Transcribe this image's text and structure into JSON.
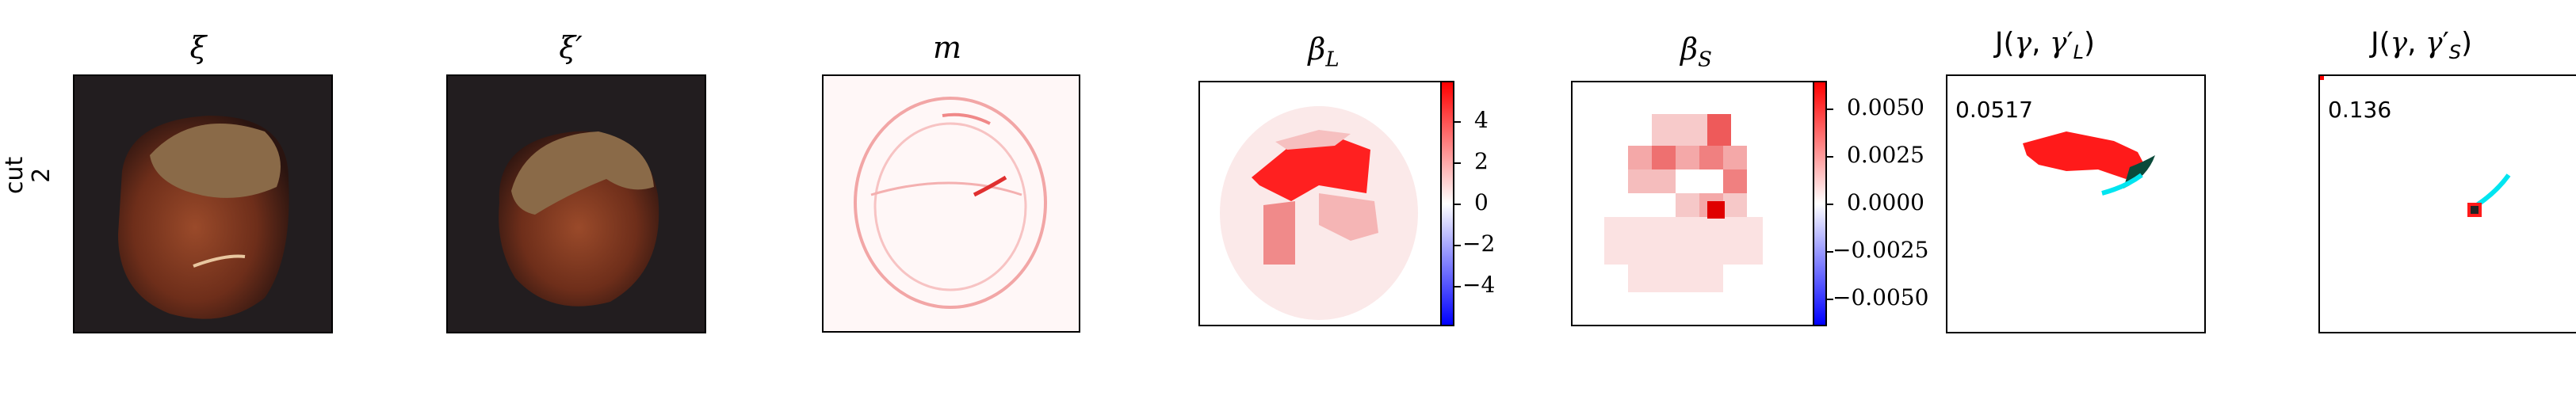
{
  "row_label": {
    "line1": "cut",
    "line2": "2"
  },
  "titles": {
    "xi": "ξ",
    "xi_prime": "ξ′",
    "m": "m",
    "beta_l": "β_L",
    "beta_s": "β_S",
    "j_l": "J(γ, γ′_L)",
    "j_s": "J(γ, γ′_S)"
  },
  "colorbar_l": {
    "ticks": [
      "4",
      "2",
      "0",
      "−2",
      "−4"
    ]
  },
  "colorbar_s": {
    "ticks": [
      "0.0050",
      "0.0025",
      "0.0000",
      "−0.0025",
      "−0.0050"
    ]
  },
  "scores": {
    "j_l": "0.0517",
    "j_s": "0.136"
  },
  "colors": {
    "positive": "#ff0000",
    "negative": "#0000ff",
    "cyan": "#00e5f0",
    "panel_bg": "#1f1a1a"
  }
}
